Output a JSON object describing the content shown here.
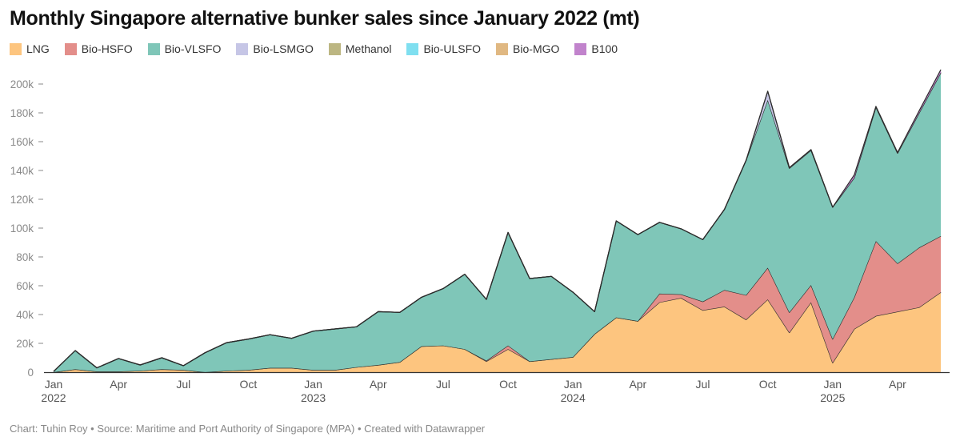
{
  "title": "Monthly Singapore alternative bunker sales since January 2022 (mt)",
  "footer": "Chart: Tuhin Roy • Source: Maritime and Port Authority of Singapore (MPA) • Created with Datawrapper",
  "chart_data": {
    "type": "area",
    "stacked": true,
    "title": "Monthly Singapore alternative bunker sales since January 2022 (mt)",
    "xlabel": "",
    "ylabel": "",
    "ylim": [
      0,
      210000
    ],
    "y_ticks": [
      0,
      20000,
      40000,
      60000,
      80000,
      100000,
      120000,
      140000,
      160000,
      180000,
      200000
    ],
    "y_tick_labels": [
      "0",
      "20k",
      "40k",
      "60k",
      "80k",
      "100k",
      "120k",
      "140k",
      "160k",
      "180k",
      "200k"
    ],
    "x_tick_labels": [
      {
        "index": 0,
        "label": "Jan",
        "year": "2022"
      },
      {
        "index": 3,
        "label": "Apr"
      },
      {
        "index": 6,
        "label": "Jul"
      },
      {
        "index": 9,
        "label": "Oct"
      },
      {
        "index": 12,
        "label": "Jan",
        "year": "2023"
      },
      {
        "index": 15,
        "label": "Apr"
      },
      {
        "index": 18,
        "label": "Jul"
      },
      {
        "index": 21,
        "label": "Oct"
      },
      {
        "index": 24,
        "label": "Jan",
        "year": "2024"
      },
      {
        "index": 27,
        "label": "Apr"
      },
      {
        "index": 30,
        "label": "Jul"
      },
      {
        "index": 33,
        "label": "Oct"
      },
      {
        "index": 36,
        "label": "Jan",
        "year": "2025"
      },
      {
        "index": 39,
        "label": "Apr"
      }
    ],
    "x_start": "2022-01",
    "months": 42,
    "legend_position": "top-left",
    "grid": false,
    "series": [
      {
        "name": "LNG",
        "color": "#fdc57f",
        "values": [
          0,
          2000,
          500,
          500,
          1000,
          2000,
          1500,
          0,
          1000,
          1500,
          3000,
          3000,
          1500,
          1500,
          3500,
          5000,
          7000,
          18000,
          18500,
          16000,
          7500,
          16000,
          7500,
          9000,
          10500,
          26500,
          38000,
          35500,
          48500,
          51500,
          43000,
          45500,
          36500,
          50500,
          27500,
          48500,
          6500,
          30000,
          39000,
          42000,
          45000,
          55500
        ]
      },
      {
        "name": "Bio-HSFO",
        "color": "#e38e8a",
        "values": [
          0,
          0,
          0,
          0,
          0,
          0,
          0,
          0,
          0,
          0,
          0,
          0,
          0,
          0,
          0,
          0,
          0,
          0,
          0,
          0,
          500,
          2500,
          0,
          0,
          0,
          0,
          0,
          0,
          6000,
          2500,
          6000,
          11500,
          17000,
          22000,
          14000,
          12000,
          16500,
          22000,
          52000,
          33500,
          41500,
          39000
        ]
      },
      {
        "name": "Bio-VLSFO",
        "color": "#7fc6b8",
        "values": [
          500,
          13000,
          2500,
          9000,
          4000,
          8000,
          3000,
          13500,
          19500,
          21500,
          23000,
          20500,
          27000,
          28500,
          28000,
          37000,
          34500,
          34000,
          39500,
          52000,
          42500,
          78500,
          57500,
          57500,
          45000,
          15500,
          67000,
          60000,
          49500,
          45500,
          43000,
          56000,
          93500,
          116500,
          100000,
          93500,
          91500,
          83000,
          93000,
          76500,
          93500,
          113500
        ]
      },
      {
        "name": "Bio-LSMGO",
        "color": "#c6c6e6",
        "values": [
          0,
          0,
          0,
          0,
          0,
          0,
          0,
          0,
          0,
          0,
          0,
          0,
          0,
          0,
          0,
          0,
          0,
          0,
          0,
          0,
          0,
          0,
          0,
          0,
          0,
          0,
          0,
          0,
          0,
          0,
          0,
          0,
          0,
          6000,
          500,
          500,
          0,
          0,
          0,
          0,
          0,
          0
        ]
      },
      {
        "name": "Methanol",
        "color": "#bcb682",
        "values": [
          0,
          0,
          0,
          0,
          0,
          0,
          0,
          0,
          0,
          0,
          0,
          0,
          0,
          0,
          0,
          0,
          0,
          0,
          0,
          0,
          0,
          0,
          0,
          0,
          0,
          0,
          0,
          0,
          0,
          0,
          0,
          0,
          0,
          0,
          0,
          0,
          0,
          0,
          0,
          0,
          0,
          0
        ]
      },
      {
        "name": "Bio-ULSFO",
        "color": "#7fdff0",
        "values": [
          0,
          0,
          0,
          0,
          0,
          0,
          0,
          0,
          0,
          0,
          0,
          0,
          0,
          0,
          0,
          0,
          0,
          0,
          0,
          0,
          0,
          0,
          0,
          0,
          0,
          0,
          0,
          0,
          0,
          0,
          0,
          0,
          0,
          0,
          0,
          0,
          0,
          0,
          0,
          0,
          0,
          0
        ]
      },
      {
        "name": "Bio-MGO",
        "color": "#e0b882",
        "values": [
          0,
          0,
          0,
          0,
          0,
          0,
          0,
          0,
          0,
          0,
          0,
          0,
          0,
          0,
          0,
          0,
          0,
          0,
          0,
          0,
          0,
          0,
          0,
          0,
          0,
          0,
          0,
          0,
          0,
          0,
          0,
          0,
          0,
          0,
          0,
          0,
          0,
          0,
          0,
          0,
          0,
          0
        ]
      },
      {
        "name": "B100",
        "color": "#c183cc",
        "values": [
          0,
          0,
          0,
          0,
          0,
          0,
          0,
          0,
          0,
          0,
          0,
          0,
          0,
          0,
          0,
          0,
          0,
          0,
          0,
          0,
          0,
          0,
          0,
          0,
          0,
          0,
          0,
          0,
          0,
          0,
          0,
          0,
          0,
          0,
          0,
          0,
          0,
          2000,
          500,
          500,
          1500,
          2000
        ]
      }
    ]
  }
}
